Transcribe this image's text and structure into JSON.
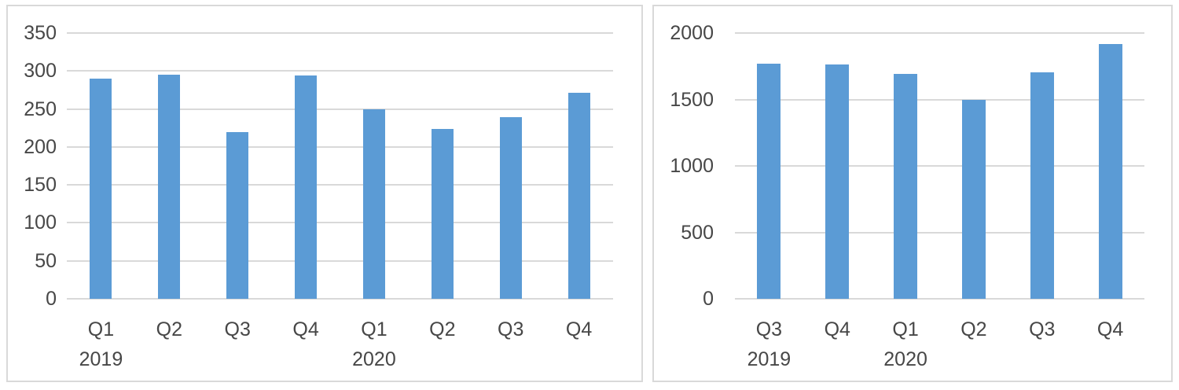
{
  "figure": {
    "background": "#ffffff",
    "panel_border_color": "#D9D9D9",
    "gridline_color": "#D9D9D9",
    "axis_text_color": "#474747",
    "bar_color": "#5B9BD5"
  },
  "chart_data": [
    {
      "type": "bar",
      "title": "",
      "xlabel": "",
      "ylabel": "",
      "legend": "none",
      "grid": true,
      "categories": [
        "Q1",
        "Q2",
        "Q3",
        "Q4",
        "Q1",
        "Q2",
        "Q3",
        "Q4"
      ],
      "year_labels": [
        {
          "index": 0,
          "label": "2019"
        },
        {
          "index": 4,
          "label": "2020"
        }
      ],
      "values": [
        290,
        295,
        220,
        294,
        250,
        224,
        239,
        271
      ],
      "ylim": [
        0,
        350
      ],
      "yticks": [
        0,
        50,
        100,
        150,
        200,
        250,
        300,
        350
      ]
    },
    {
      "type": "bar",
      "title": "",
      "xlabel": "",
      "ylabel": "",
      "legend": "none",
      "grid": true,
      "categories": [
        "Q3",
        "Q4",
        "Q1",
        "Q2",
        "Q3",
        "Q4"
      ],
      "year_labels": [
        {
          "index": 0,
          "label": "2019"
        },
        {
          "index": 2,
          "label": "2020"
        }
      ],
      "values": [
        1770,
        1765,
        1695,
        1500,
        1705,
        1920
      ],
      "ylim": [
        0,
        2000
      ],
      "yticks": [
        0,
        500,
        1000,
        1500,
        2000
      ]
    }
  ]
}
